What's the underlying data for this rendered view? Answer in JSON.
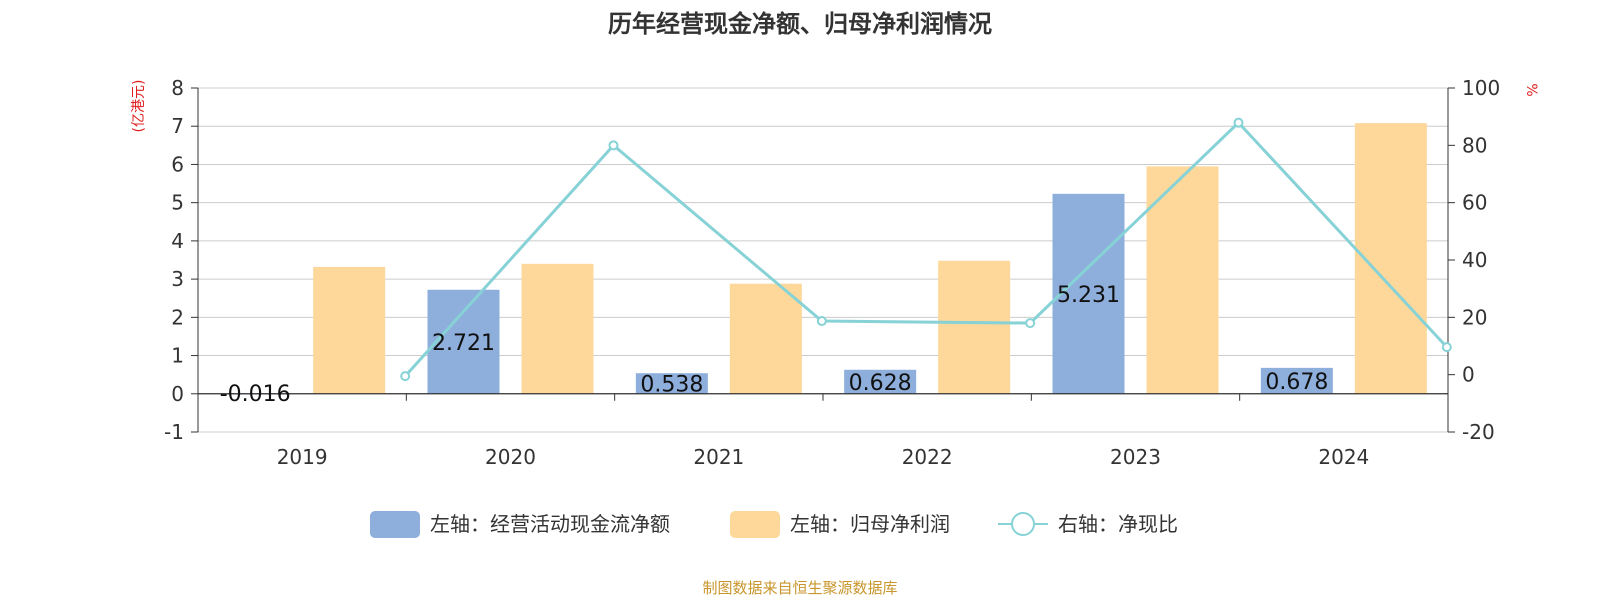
{
  "chart_data": {
    "type": "bar",
    "title": "历年经营现金净额、归母净利润情况",
    "categories": [
      "2019",
      "2020",
      "2021",
      "2022",
      "2023",
      "2024"
    ],
    "left_axis": {
      "unit": "(亿港元)",
      "min": -1,
      "max": 8,
      "ticks": [
        "-1",
        "0",
        "1",
        "2",
        "3",
        "4",
        "5",
        "6",
        "7",
        "8"
      ]
    },
    "right_axis": {
      "unit": "%",
      "min": -20,
      "max": 100,
      "ticks": [
        "-20",
        "0",
        "20",
        "40",
        "60",
        "80",
        "100"
      ]
    },
    "series": [
      {
        "name": "左轴：经营活动现金流净额",
        "type": "bar",
        "axis": "left",
        "color": "#8eaedc",
        "values": [
          -0.016,
          2.721,
          0.538,
          0.628,
          5.231,
          0.678
        ],
        "labels": [
          "-0.016",
          "2.721",
          "0.538",
          "0.628",
          "5.231",
          "0.678"
        ]
      },
      {
        "name": "左轴：归母净利润",
        "type": "bar",
        "axis": "left",
        "color": "#fdd89a",
        "values": [
          3.32,
          3.4,
          2.88,
          3.48,
          5.95,
          7.08
        ]
      },
      {
        "name": "右轴：净现比",
        "type": "line",
        "axis": "right",
        "color": "#86d2d6",
        "values": [
          -0.5,
          80.0,
          18.7,
          18.0,
          87.9,
          9.6
        ]
      }
    ],
    "grid": true,
    "legend_position": "bottom"
  },
  "source": "制图数据来自恒生聚源数据库"
}
